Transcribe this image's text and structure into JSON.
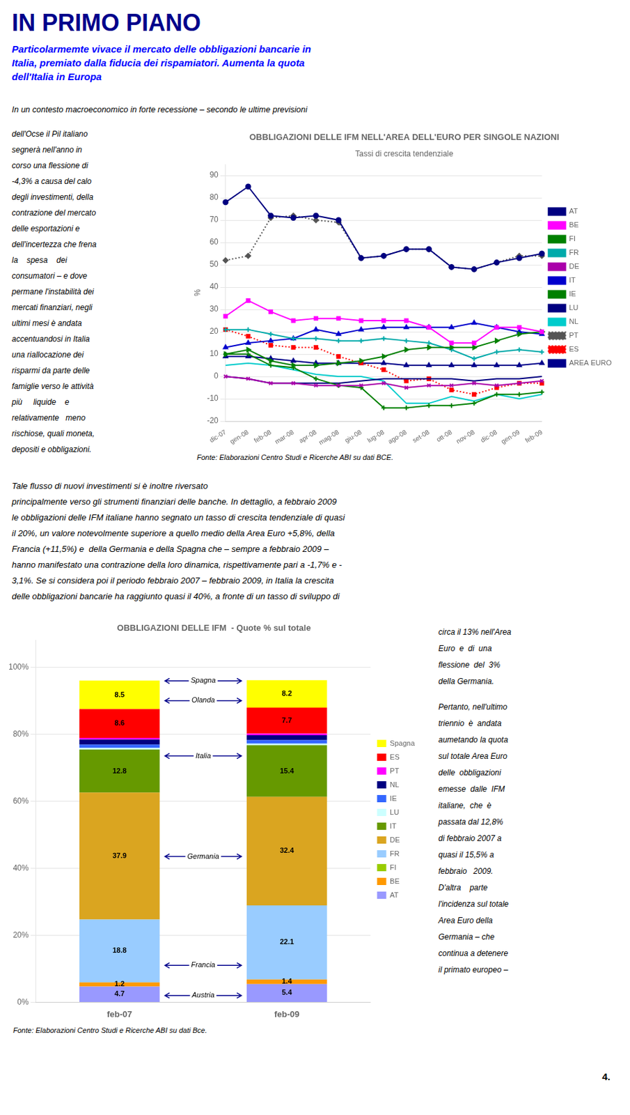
{
  "title": "IN PRIMO PIANO",
  "subtitle": [
    "Particolarmemte vivace il mercato delle obbligazioni bancarie in",
    "Italia, premiato dalla fiducia dei rispamiatori. Aumenta la quota",
    "dell'Italia in Europa"
  ],
  "paragraphs": [
    [
      "In un contesto macroeconomico in forte recessione – secondo le ultime previsioni",
      "dell'Ocse il Pil italiano",
      "segnerà nell'anno in",
      "corso una flessione di",
      "-4,3% a causa del calo",
      "degli investimenti, della",
      "contrazione del mercato",
      "delle esportazioni e",
      "dell'incertezza che frena",
      "la    spesa    dei",
      "consumatori – e dove",
      "permane l'instabilità dei",
      "mercati finanziari, negli",
      "ultimi mesi è andata",
      "accentuandosi in Italia",
      "una riallocazione dei",
      "risparmi da parte delle",
      "famiglie verso le attività",
      "più     liquide    e",
      "relativamente   meno",
      "rischiose, quali moneta,",
      "depositi e obbligazioni."
    ],
    [
      "Tale flusso di nuovi investimenti si è inoltre riversato",
      "principalmente verso gli strumenti finanziari delle banche. In dettaglio, a febbraio 2009",
      "le obbligazioni delle IFM italiane hanno segnato un tasso di crescita tendenziale di quasi",
      "il 20%, un valore notevolmente superiore a quello medio della Area Euro +5,8%, della",
      "Francia (+11,5%) e  della Germania e della Spagna che – sempre a febbraio 2009 –",
      "hanno manifestato una contrazione della loro dinamica, rispettivamente pari a -1,7% e -",
      "3,1%. Se si considera poi il periodo febbraio 2007 – febbraio 2009, in Italia la crescita",
      "delle obbligazioni bancarie ha raggiunto quasi il 40%, a fronte di un tasso di sviluppo di"
    ],
    [
      "circa il 13% nell'Area",
      "Euro  e  di  una",
      "flessione  del  3%",
      "della Germania."
    ],
    [
      "Pertanto, nell'ultimo",
      "triennio  è  andata",
      "aumetando la quota",
      "sul totale Area Euro",
      "delle  obbligazioni",
      "emesse  dalle  IFM",
      "italiane,  che  è",
      "passata dal 12,8%",
      "di febbraio 2007 a",
      "quasi il 15,5% a",
      "febbraio   2009.",
      "D'altra    parte",
      "l'incidenza sul totale",
      "Area Euro della",
      "Germania – che",
      "continua a detenere",
      "il primato europeo –"
    ]
  ],
  "page_number": "4.",
  "chart_data": [
    {
      "type": "line",
      "title": "OBBLIGAZIONI DELLE IFM NELL'AREA DELL'EURO PER SINGOLE NAZIONI",
      "subtitle": "Tassi di crescita tendenziale",
      "ylabel": "%",
      "source": "Fonte: Elaborazioni Centro Studi e Ricerche ABI su dati BCE.",
      "categories": [
        "dic-07",
        "gen-08",
        "feb-08",
        "mar-08",
        "apr-08",
        "mag-08",
        "giu-08",
        "lug-08",
        "ago-08",
        "set-08",
        "ott-08",
        "nov-08",
        "dic-08",
        "gen-09",
        "feb-09"
      ],
      "ylim": [
        -20,
        95
      ],
      "yticks": [
        -20,
        -10,
        0,
        10,
        20,
        30,
        40,
        50,
        60,
        70,
        80,
        90
      ],
      "grid": "y",
      "legend": "right",
      "series": [
        {
          "name": "AT",
          "color": "#000080",
          "marker": "circle",
          "line_style": "solid",
          "values": [
            78,
            85,
            72,
            71,
            72,
            70,
            53,
            54,
            57,
            57,
            49,
            48,
            51,
            53,
            55
          ]
        },
        {
          "name": "BE",
          "color": "#FF00FF",
          "marker": "square",
          "line_style": "solid",
          "values": [
            27,
            34,
            29,
            25,
            26,
            26,
            25,
            25,
            25,
            22,
            15,
            15,
            22,
            22,
            20
          ]
        },
        {
          "name": "FI",
          "color": "#008000",
          "marker": "triangle_right",
          "line_style": "solid",
          "values": [
            10,
            12,
            7,
            5,
            5,
            6,
            7,
            9,
            12,
            13,
            13,
            13,
            16,
            19,
            20
          ]
        },
        {
          "name": "FR",
          "color": "#00AAAA",
          "marker": "plus",
          "line_style": "solid",
          "values": [
            21,
            21,
            19,
            17,
            17,
            16,
            16,
            17,
            16,
            15,
            12,
            8,
            11,
            12,
            11
          ]
        },
        {
          "name": "DE",
          "color": "#AA00AA",
          "marker": "x",
          "line_style": "solid",
          "values": [
            0,
            -1,
            -3,
            -3,
            -4,
            -4,
            -4,
            -3,
            -5,
            -4,
            -4,
            -3,
            -4,
            -3,
            -2
          ]
        },
        {
          "name": "IT",
          "color": "#0000CD",
          "marker": "triangle",
          "line_style": "solid",
          "values": [
            13,
            15,
            16,
            17,
            21,
            19,
            21,
            22,
            22,
            22,
            22,
            24,
            22,
            20,
            19
          ]
        },
        {
          "name": "IE",
          "color": "#008000",
          "marker": "plus",
          "line_style": "solid",
          "values": [
            10,
            10,
            5,
            4,
            -1,
            -4,
            -5,
            -14,
            -14,
            -13,
            -13,
            -12,
            -8,
            -8,
            -7
          ]
        },
        {
          "name": "LU",
          "color": "#000080",
          "marker": "none",
          "line_style": "solid",
          "values": [
            0,
            -1,
            -3,
            -3,
            -3,
            -3,
            -2,
            -1,
            -1,
            -1,
            -1,
            -2,
            -1,
            -1,
            0
          ]
        },
        {
          "name": "NL",
          "color": "#00CCCC",
          "marker": "none",
          "line_style": "solid",
          "values": [
            5,
            6,
            5,
            3,
            1,
            0,
            0,
            -2,
            -12,
            -12,
            -9,
            -11,
            -8,
            -10,
            -8
          ]
        },
        {
          "name": "PT",
          "color": "#555555",
          "marker": "diamond",
          "line_style": "dotted",
          "values": [
            52,
            54,
            71,
            72,
            70,
            69,
            53,
            54,
            57,
            57,
            49,
            48,
            51,
            54,
            54
          ]
        },
        {
          "name": "ES",
          "color": "#FF0000",
          "marker": "square",
          "line_style": "dotted",
          "values": [
            21,
            18,
            14,
            13,
            13,
            9,
            6,
            3,
            -2,
            -1,
            -6,
            -8,
            -5,
            -3,
            -3
          ]
        },
        {
          "name": "AREA EURO",
          "color": "#00008B",
          "marker": "triangle",
          "line_style": "solid",
          "values": [
            9,
            9,
            8,
            7,
            6,
            6,
            6,
            6,
            5,
            5,
            5,
            5,
            5,
            5,
            6
          ]
        }
      ]
    },
    {
      "type": "bar",
      "stacked": true,
      "title": "OBBLIGAZIONI DELLE IFM  - Quote % sul totale",
      "source": "Fonte: Elaborazioni Centro Studi e Ricerche ABI su dati Bce.",
      "categories": [
        "feb-07",
        "feb-09"
      ],
      "ylim": [
        0,
        108
      ],
      "yticks": [
        {
          "value": 0,
          "label": "0%"
        },
        {
          "value": 20,
          "label": "20%"
        },
        {
          "value": 40,
          "label": "40%"
        },
        {
          "value": 60,
          "label": "60%"
        },
        {
          "value": 80,
          "label": "80%"
        },
        {
          "value": 100,
          "label": "100%"
        }
      ],
      "grid": "y",
      "legend": "right",
      "series": [
        {
          "name": "AT",
          "color": "#9999FF",
          "data_labels": true,
          "values": [
            4.7,
            5.4
          ]
        },
        {
          "name": "BE",
          "color": "#FF9900",
          "data_labels": true,
          "values": [
            1.2,
            1.4
          ]
        },
        {
          "name": "FI",
          "color": "#99CC00",
          "values": [
            0.0,
            0.0
          ]
        },
        {
          "name": "FR",
          "color": "#99CCFF",
          "data_labels": true,
          "values": [
            18.8,
            22.1
          ]
        },
        {
          "name": "DE",
          "color": "#DAA520",
          "data_labels": true,
          "values": [
            37.9,
            32.4
          ]
        },
        {
          "name": "IT",
          "color": "#669900",
          "data_labels": true,
          "values": [
            12.8,
            15.4
          ]
        },
        {
          "name": "LU",
          "color": "#CCFFFF",
          "values": [
            0.5,
            0.5
          ]
        },
        {
          "name": "IE",
          "color": "#3366FF",
          "values": [
            1.0,
            1.0
          ]
        },
        {
          "name": "NL",
          "color": "#000080",
          "values": [
            1.5,
            1.5
          ]
        },
        {
          "name": "PT",
          "color": "#FF00FF",
          "values": [
            0.5,
            0.5
          ]
        },
        {
          "name": "ES",
          "color": "#FF0000",
          "data_labels": true,
          "values": [
            8.6,
            7.7
          ]
        },
        {
          "name": "Spagna",
          "color": "#FFFF00",
          "data_labels": true,
          "values": [
            8.5,
            8.2
          ]
        }
      ],
      "annotations": [
        {
          "label": "Spagna",
          "y": 95.9
        },
        {
          "label": "Olanda",
          "y": 90.0
        },
        {
          "label": "Italia",
          "y": 73.5
        },
        {
          "label": "Germania",
          "y": 43.5
        },
        {
          "label": "Francia",
          "y": 11.0
        },
        {
          "label": "Austria",
          "y": 2.0
        }
      ]
    }
  ]
}
